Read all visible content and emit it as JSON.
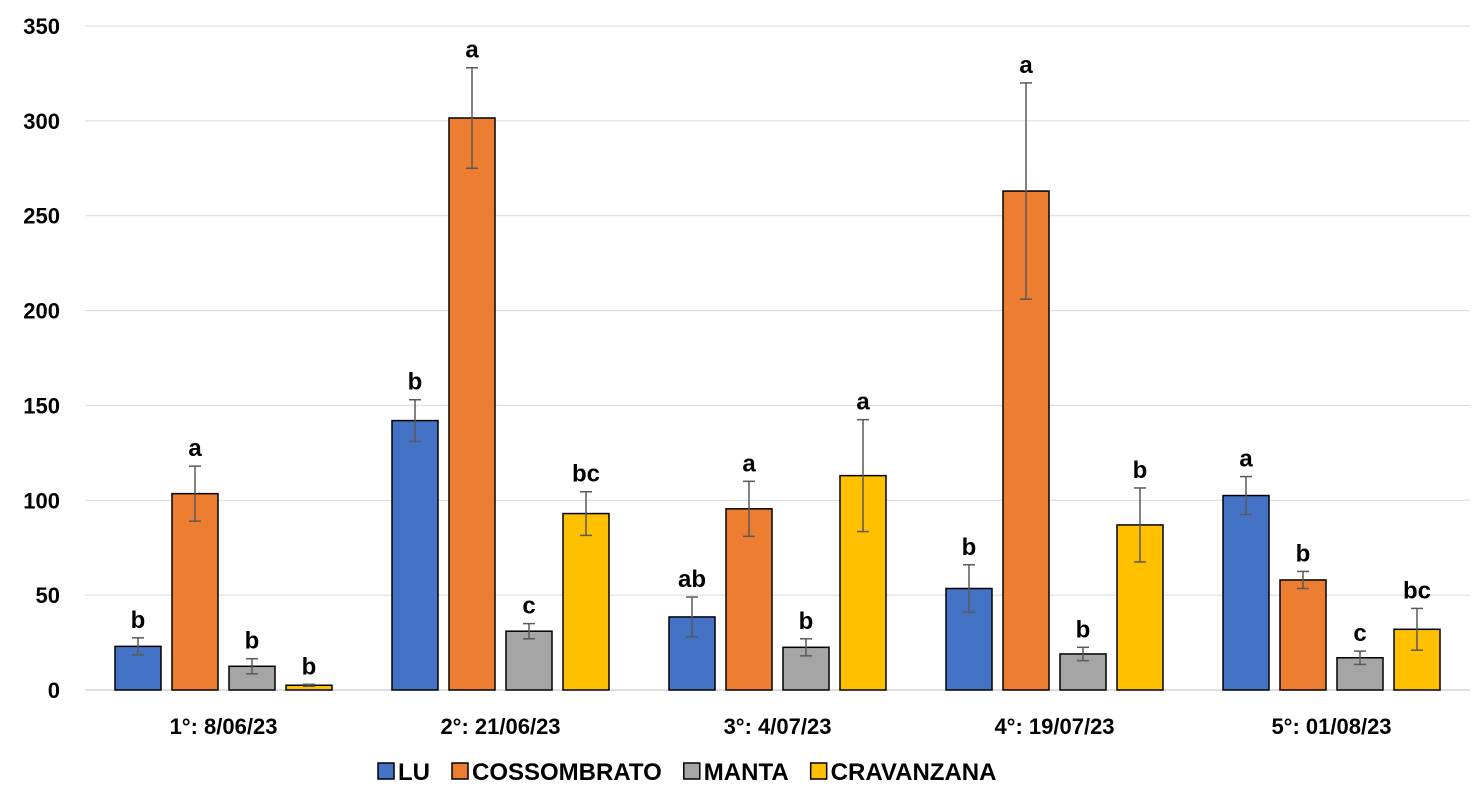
{
  "chart_data": {
    "type": "bar",
    "title": "",
    "xlabel": "",
    "ylabel": "",
    "ylim": [
      0,
      350
    ],
    "yticks": [
      0,
      50,
      100,
      150,
      200,
      250,
      300,
      350
    ],
    "grid": true,
    "legend_position": "bottom",
    "categories": [
      "1°: 8/06/23",
      "2°: 21/06/23",
      "3°: 4/07/23",
      "4°: 19/07/23",
      "5°: 01/08/23"
    ],
    "series": [
      {
        "name": "LU",
        "color": "#4472C4",
        "values": [
          23,
          142,
          38.5,
          53.5,
          102.5
        ],
        "errors": [
          4.5,
          11,
          10.5,
          12.5,
          10
        ],
        "letters": [
          "b",
          "b",
          "ab",
          "b",
          "a"
        ]
      },
      {
        "name": "COSSOMBRATO",
        "color": "#ED7D31",
        "values": [
          103.5,
          301.5,
          95.5,
          263,
          58
        ],
        "errors": [
          14.5,
          26.5,
          14.5,
          57,
          4.5
        ],
        "letters": [
          "a",
          "a",
          "a",
          "a",
          "b"
        ]
      },
      {
        "name": "MANTA",
        "color": "#A5A5A5",
        "values": [
          12.5,
          31,
          22.5,
          19,
          17
        ],
        "errors": [
          4,
          4,
          4.5,
          3.5,
          3.5
        ],
        "letters": [
          "b",
          "c",
          "b",
          "b",
          "c"
        ]
      },
      {
        "name": "CRAVANZANA",
        "color": "#FFC000",
        "values": [
          2.5,
          93,
          113,
          87,
          32
        ],
        "errors": [
          0.5,
          11.5,
          29.5,
          19.5,
          11
        ],
        "letters": [
          "b",
          "bc",
          "a",
          "b",
          "bc"
        ]
      }
    ]
  }
}
